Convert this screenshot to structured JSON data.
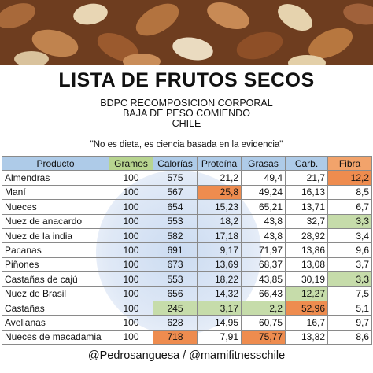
{
  "title": "LISTA DE FRUTOS SECOS",
  "subtitle_lines": [
    "BDPC RECOMPOSICION CORPORAL",
    "BAJA DE PESO COMIENDO",
    "CHILE"
  ],
  "quote": "\"No es dieta, es ciencia basada en la evidencia\"",
  "table": {
    "headers": [
      "Producto",
      "Gramos",
      "Calorías",
      "Proteína",
      "Grasas",
      "Carb.",
      "Fibra"
    ],
    "rows": [
      {
        "producto": "Almendras",
        "gramos": "100",
        "calorias": "575",
        "proteina": "21,2",
        "grasas": "49,4",
        "carb": "21,7",
        "fibra": "12,2"
      },
      {
        "producto": "Maní",
        "gramos": "100",
        "calorias": "567",
        "proteina": "25,8",
        "grasas": "49,24",
        "carb": "16,13",
        "fibra": "8,5"
      },
      {
        "producto": "Nueces",
        "gramos": "100",
        "calorias": "654",
        "proteina": "15,23",
        "grasas": "65,21",
        "carb": "13,71",
        "fibra": "6,7"
      },
      {
        "producto": "Nuez de anacardo",
        "gramos": "100",
        "calorias": "553",
        "proteina": "18,2",
        "grasas": "43,8",
        "carb": "32,7",
        "fibra": "3,3"
      },
      {
        "producto": "Nuez de la india",
        "gramos": "100",
        "calorias": "582",
        "proteina": "17,18",
        "grasas": "43,8",
        "carb": "28,92",
        "fibra": "3,4"
      },
      {
        "producto": "Pacanas",
        "gramos": "100",
        "calorias": "691",
        "proteina": "9,17",
        "grasas": "71,97",
        "carb": "13,86",
        "fibra": "9,6"
      },
      {
        "producto": "Piñones",
        "gramos": "100",
        "calorias": "673",
        "proteina": "13,69",
        "grasas": "68,37",
        "carb": "13,08",
        "fibra": "3,7"
      },
      {
        "producto": "Castañas de cajú",
        "gramos": "100",
        "calorias": "553",
        "proteina": "18,22",
        "grasas": "43,85",
        "carb": "30,19",
        "fibra": "3,3"
      },
      {
        "producto": "Nuez de Brasil",
        "gramos": "100",
        "calorias": "656",
        "proteina": "14,32",
        "grasas": "66,43",
        "carb": "12,27",
        "fibra": "7,5"
      },
      {
        "producto": "Castañas",
        "gramos": "100",
        "calorias": "245",
        "proteina": "3,17",
        "grasas": "2,2",
        "carb": "52,96",
        "fibra": "5,1"
      },
      {
        "producto": "Avellanas",
        "gramos": "100",
        "calorias": "628",
        "proteina": "14,95",
        "grasas": "60,75",
        "carb": "16,7",
        "fibra": "9,7"
      },
      {
        "producto": "Nueces de macadamia",
        "gramos": "100",
        "calorias": "718",
        "proteina": "7,91",
        "grasas": "75,77",
        "carb": "13,82",
        "fibra": "8,6"
      }
    ],
    "highlights": {
      "orange": "#ee8c4f",
      "green": "#c6dcaa"
    }
  },
  "footer": "@Pedrosanguesa / @mamifitnesschile"
}
